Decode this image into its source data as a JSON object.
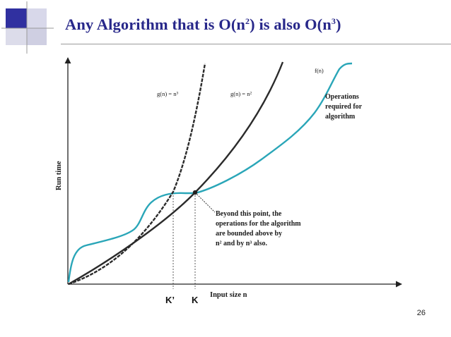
{
  "slide": {
    "title_prefix": "Any Algorithm that is O(n",
    "title_exp1": "2",
    "title_middle": ") is also O(n",
    "title_exp2": "3",
    "title_suffix": ")",
    "page_number": "26"
  },
  "figure": {
    "y_axis_label": "Run time",
    "x_axis_label": "Input size n",
    "curve_cubic_label": "g(n) = n³",
    "curve_square_label": "g(n) = n²",
    "curve_f_label": "f(n)",
    "operations_text": [
      "Operations",
      "required for",
      "algorithm"
    ],
    "beyond_text": [
      "Beyond this point, the",
      "operations for the algorithm",
      "are bounded above by",
      "n² and by n³ also."
    ],
    "marker_k_prime": "K’",
    "marker_k": "K",
    "colors": {
      "f_curve": "#2aa6b8",
      "g_curves": "#2b2b2b",
      "title": "#28288a"
    }
  }
}
